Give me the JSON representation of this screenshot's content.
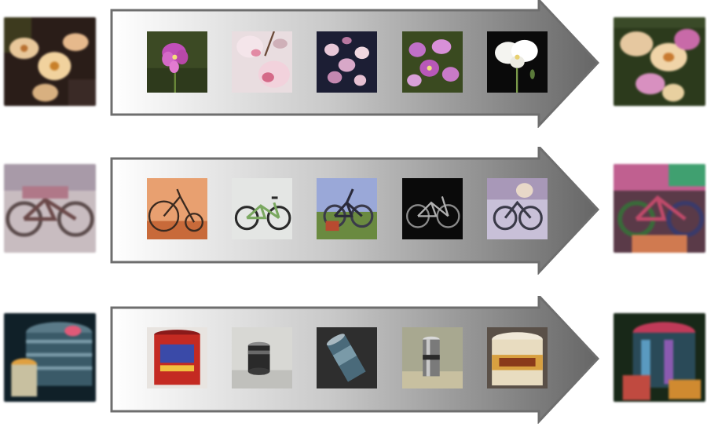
{
  "rows": [
    {
      "name": "flower",
      "query_icon": "blurry-flower-image",
      "thumbnails": [
        "pink-orchid-photo",
        "pale-orchid-photo",
        "orchid-spray-photo",
        "purple-orchid-photo",
        "white-orchid-photo"
      ],
      "result_icon": "reconstructed-flower-image"
    },
    {
      "name": "bicycle",
      "query_icon": "blurry-bicycle-image",
      "thumbnails": [
        "penny-farthing-photo",
        "bmx-bike-photo",
        "mountain-bike-photo",
        "dark-bike-photo",
        "rider-bike-photo"
      ],
      "result_icon": "reconstructed-bicycle-image"
    },
    {
      "name": "can",
      "query_icon": "blurry-cans-image",
      "thumbnails": [
        "red-coffee-can-photo",
        "metal-can-photo",
        "tilted-can-photo",
        "silver-can-photo",
        "paint-can-photo"
      ],
      "result_icon": "reconstructed-can-image"
    }
  ],
  "colors": {
    "arrow_stroke": "#6e6e6e",
    "arrow_light": "#ffffff",
    "arrow_dark": "#6a6a6a"
  }
}
